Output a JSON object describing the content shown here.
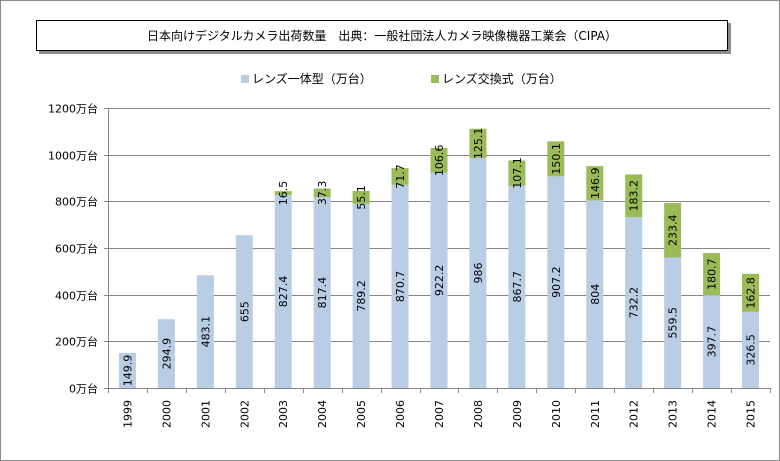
{
  "title": "日本向けデジタルカメラ出荷数量　出典：一般社団法人カメラ映像機器工業会（CIPA）",
  "chart_data": {
    "type": "bar",
    "stacked": true,
    "title": "日本向けデジタルカメラ出荷数量　出典：一般社団法人カメラ映像機器工業会（CIPA）",
    "xlabel": "",
    "ylabel": "",
    "ylim": [
      0,
      1200
    ],
    "yticks": [
      0,
      200,
      400,
      600,
      800,
      1000,
      1200
    ],
    "ytick_labels": [
      "0万台",
      "200万台",
      "400万台",
      "600万台",
      "800万台",
      "1000万台",
      "1200万台"
    ],
    "grid": true,
    "legend_position": "top",
    "categories": [
      "1999",
      "2000",
      "2001",
      "2002",
      "2003",
      "2004",
      "2005",
      "2006",
      "2007",
      "2008",
      "2009",
      "2010",
      "2011",
      "2012",
      "2013",
      "2014",
      "2015"
    ],
    "series": [
      {
        "name": "レンズ一体型（万台）",
        "color": "#b9cde5",
        "values": [
          149.9,
          294.9,
          483.1,
          655,
          827.4,
          817.4,
          789.2,
          870.7,
          922.2,
          986,
          867.7,
          907.2,
          804,
          732.2,
          559.5,
          397.7,
          326.5
        ],
        "labels": [
          "149.9",
          "294.9",
          "483.1",
          "655",
          "827.4",
          "817.4",
          "789.2",
          "870.7",
          "922.2",
          "986",
          "867.7",
          "907.2",
          "804",
          "732.2",
          "559.5",
          "397.7",
          "326.5"
        ]
      },
      {
        "name": "レンズ交換式（万台）",
        "color": "#9bbb59",
        "values": [
          0,
          0,
          0,
          0,
          16.5,
          37.3,
          55.1,
          71.7,
          106.6,
          125.1,
          107.1,
          150.1,
          146.9,
          183.2,
          233.4,
          180.7,
          162.8
        ],
        "labels": [
          "",
          "",
          "",
          "",
          "16.5",
          "37.3",
          "55.1",
          "71.7",
          "106.6",
          "125.1",
          "107.1",
          "150.1",
          "146.9",
          "183.2",
          "233.4",
          "180.7",
          "162.8"
        ]
      }
    ]
  }
}
